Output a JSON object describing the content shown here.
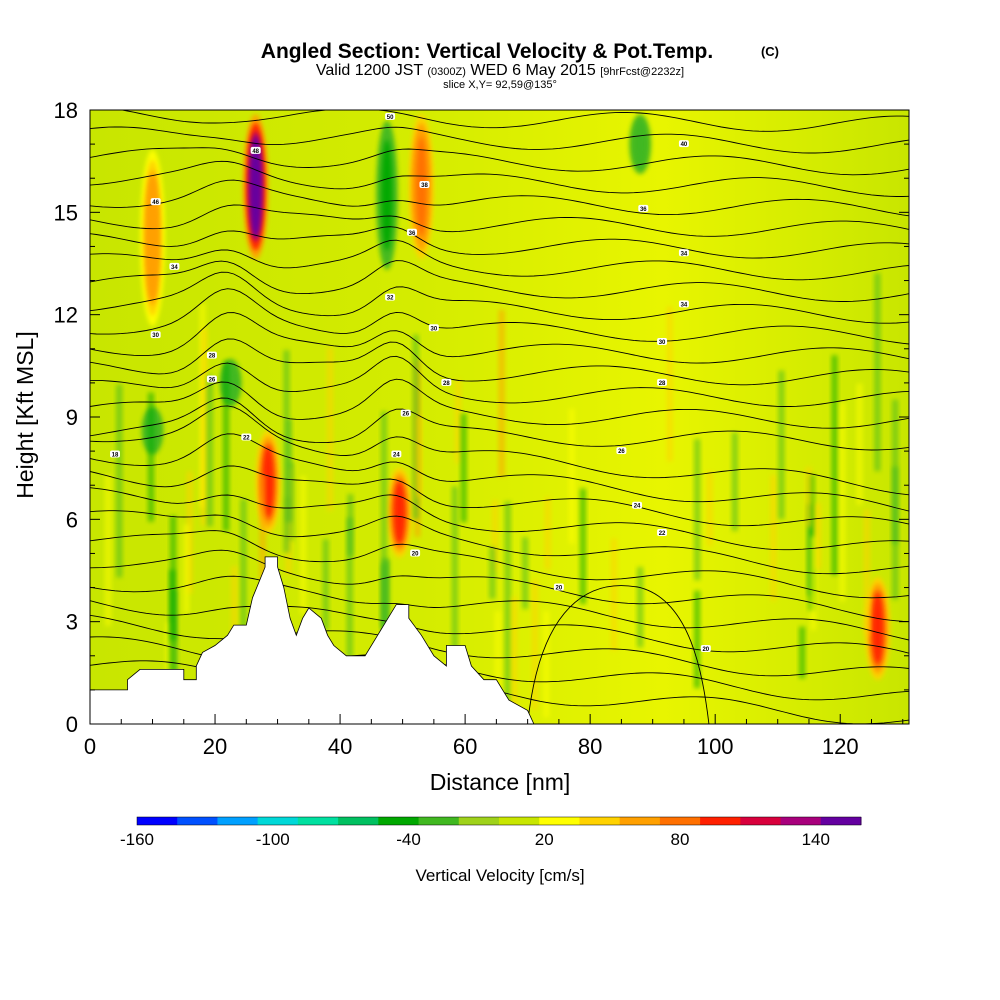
{
  "header": {
    "title": "Angled Section: Vertical Velocity & Pot.Temp.",
    "title_unit": "(C)",
    "valid_prefix": "Valid 1200 JST",
    "valid_utc": "(0300Z)",
    "valid_date": "WED 6 May 2015",
    "forecast_tag": "[9hrFcst@2232z]",
    "slice": "slice X,Y= 92,59@135°"
  },
  "chart_data": {
    "type": "heatmap",
    "xlabel": "Distance [nm]",
    "ylabel": "Height [Kft MSL]",
    "xlim": [
      0,
      131
    ],
    "ylim": [
      0,
      18
    ],
    "x_ticks": [
      "0",
      "20",
      "40",
      "60",
      "80",
      "100",
      "120"
    ],
    "x_tick_values": [
      0,
      20,
      40,
      60,
      80,
      100,
      120
    ],
    "y_ticks": [
      "0",
      "3",
      "6",
      "9",
      "12",
      "15",
      "18"
    ],
    "y_tick_values": [
      0,
      3,
      6,
      9,
      12,
      15,
      18
    ],
    "colorbar": {
      "label": "Vertical Velocity [cm/s]",
      "tick_labels": [
        "-160",
        "-100",
        "-40",
        "20",
        "80",
        "140"
      ],
      "tick_values": [
        -160,
        -100,
        -40,
        20,
        80,
        140
      ],
      "range": [
        -160,
        160
      ],
      "colors": [
        "#0000ff",
        "#0050ff",
        "#00a0ff",
        "#00d8d8",
        "#00e0a0",
        "#00c060",
        "#00a800",
        "#40b820",
        "#9fd21a",
        "#c8e600",
        "#ffff00",
        "#ffd200",
        "#ffa000",
        "#ff7000",
        "#ff2000",
        "#d8003c",
        "#a8007c",
        "#6400a0"
      ]
    },
    "terrain_height_kft": [
      [
        0,
        1.0
      ],
      [
        6,
        1.0
      ],
      [
        6,
        1.3
      ],
      [
        8,
        1.6
      ],
      [
        15,
        1.6
      ],
      [
        15,
        1.3
      ],
      [
        17,
        1.3
      ],
      [
        17,
        1.7
      ],
      [
        18,
        2.1
      ],
      [
        20,
        2.3
      ],
      [
        22,
        2.6
      ],
      [
        23,
        2.9
      ],
      [
        25,
        2.9
      ],
      [
        26,
        3.7
      ],
      [
        28,
        4.6
      ],
      [
        28,
        4.9
      ],
      [
        30,
        4.9
      ],
      [
        30,
        4.6
      ],
      [
        31,
        4.0
      ],
      [
        32,
        3.1
      ],
      [
        33,
        2.6
      ],
      [
        34,
        3.1
      ],
      [
        35,
        3.4
      ],
      [
        37,
        3.1
      ],
      [
        38,
        2.6
      ],
      [
        39,
        2.3
      ],
      [
        41,
        2.0
      ],
      [
        44,
        2.0
      ],
      [
        46,
        2.6
      ],
      [
        49,
        3.5
      ],
      [
        51,
        3.5
      ],
      [
        51,
        3.1
      ],
      [
        53,
        2.6
      ],
      [
        55,
        2.0
      ],
      [
        57,
        1.7
      ],
      [
        57,
        2.3
      ],
      [
        60,
        2.3
      ],
      [
        61,
        1.7
      ],
      [
        63,
        1.3
      ],
      [
        65,
        1.3
      ],
      [
        66,
        1.0
      ],
      [
        67,
        0.7
      ],
      [
        70,
        0.4
      ],
      [
        71,
        0.0
      ],
      [
        131,
        0.0
      ]
    ],
    "updraft_cores": [
      {
        "x": 28.5,
        "y_bottom": 5.5,
        "y_top": 8.7,
        "value": 100
      },
      {
        "x": 49.5,
        "y_bottom": 4.8,
        "y_top": 7.6,
        "value": 100
      },
      {
        "x": 126,
        "y_bottom": 1.2,
        "y_top": 4.4,
        "value": 90
      },
      {
        "x": 26.5,
        "y_bottom": 13.5,
        "y_top": 18,
        "value": 150
      },
      {
        "x": 53,
        "y_bottom": 13.5,
        "y_top": 18,
        "value": 80
      },
      {
        "x": 10,
        "y_bottom": 11.5,
        "y_top": 17,
        "value": 60
      }
    ],
    "downdraft_cores": [
      {
        "x": 47.5,
        "y_bottom": 13.0,
        "y_top": 18,
        "value": -40
      },
      {
        "x": 10,
        "y_bottom": 7.8,
        "y_top": 9.4,
        "value": -30
      },
      {
        "x": 22.5,
        "y_bottom": 9.2,
        "y_top": 10.8,
        "value": -30
      },
      {
        "x": 88,
        "y_bottom": 16.0,
        "y_top": 18,
        "value": -30
      }
    ],
    "theta_contour_labels": [
      {
        "x": 10.5,
        "y": 15.3,
        "text": "46"
      },
      {
        "x": 13.5,
        "y": 13.4,
        "text": "34"
      },
      {
        "x": 10.5,
        "y": 11.4,
        "text": "30"
      },
      {
        "x": 19.5,
        "y": 10.8,
        "text": "28"
      },
      {
        "x": 19.5,
        "y": 10.1,
        "text": "26"
      },
      {
        "x": 25,
        "y": 8.4,
        "text": "22"
      },
      {
        "x": 4,
        "y": 7.9,
        "text": "18"
      },
      {
        "x": 26.5,
        "y": 16.8,
        "text": "48"
      },
      {
        "x": 48,
        "y": 17.8,
        "text": "50"
      },
      {
        "x": 53.5,
        "y": 15.8,
        "text": "38"
      },
      {
        "x": 51.5,
        "y": 14.4,
        "text": "36"
      },
      {
        "x": 48,
        "y": 12.5,
        "text": "32"
      },
      {
        "x": 55,
        "y": 11.6,
        "text": "30"
      },
      {
        "x": 57,
        "y": 10.0,
        "text": "28"
      },
      {
        "x": 50.5,
        "y": 9.1,
        "text": "26"
      },
      {
        "x": 49,
        "y": 7.9,
        "text": "24"
      },
      {
        "x": 52,
        "y": 5.0,
        "text": "20"
      },
      {
        "x": 95,
        "y": 17.0,
        "text": "40"
      },
      {
        "x": 88.5,
        "y": 15.1,
        "text": "36"
      },
      {
        "x": 95,
        "y": 13.8,
        "text": "34"
      },
      {
        "x": 95,
        "y": 12.3,
        "text": "34"
      },
      {
        "x": 91.5,
        "y": 11.2,
        "text": "30"
      },
      {
        "x": 91.5,
        "y": 10.0,
        "text": "28"
      },
      {
        "x": 85,
        "y": 8.0,
        "text": "26"
      },
      {
        "x": 87.5,
        "y": 6.4,
        "text": "24"
      },
      {
        "x": 91.5,
        "y": 5.6,
        "text": "22"
      },
      {
        "x": 75,
        "y": 4.0,
        "text": "20"
      },
      {
        "x": 98.5,
        "y": 2.2,
        "text": "20"
      }
    ]
  }
}
